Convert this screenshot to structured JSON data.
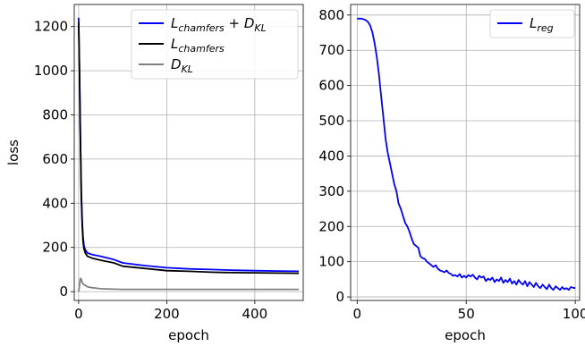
{
  "chart_data": [
    {
      "type": "line",
      "title": "",
      "xlabel": "epoch",
      "ylabel": "loss",
      "xlim": [
        -10,
        510
      ],
      "ylim": [
        -40,
        1300
      ],
      "xticks": [
        0,
        200,
        400
      ],
      "yticks": [
        0,
        200,
        400,
        600,
        800,
        1000,
        1200
      ],
      "grid": true,
      "legend_position": "top-right",
      "legend": [
        {
          "series": "sum",
          "main": "L",
          "sub": "chamfers",
          "main2": " + D",
          "sub2": "KL"
        },
        {
          "series": "chamfers",
          "main": "L",
          "sub": "chamfers",
          "main2": "",
          "sub2": ""
        },
        {
          "series": "kl",
          "main": "D",
          "sub": "KL",
          "main2": "",
          "sub2": ""
        }
      ],
      "series": [
        {
          "key": "sum",
          "color": "#0000ff",
          "x": [
            0,
            2,
            4,
            6,
            8,
            10,
            12,
            15,
            20,
            30,
            50,
            80,
            100,
            150,
            200,
            250,
            300,
            350,
            400,
            450,
            500
          ],
          "y": [
            1240,
            1000,
            700,
            450,
            320,
            250,
            210,
            190,
            175,
            168,
            160,
            145,
            130,
            118,
            108,
            103,
            100,
            97,
            95,
            93,
            92
          ]
        },
        {
          "key": "chamfers",
          "color": "#000000",
          "x": [
            0,
            2,
            4,
            6,
            8,
            10,
            12,
            15,
            20,
            30,
            50,
            80,
            100,
            150,
            200,
            250,
            300,
            350,
            400,
            450,
            500
          ],
          "y": [
            1220,
            980,
            680,
            430,
            300,
            230,
            195,
            175,
            160,
            152,
            142,
            130,
            115,
            105,
            95,
            92,
            88,
            86,
            85,
            84,
            83
          ]
        },
        {
          "key": "kl",
          "color": "#808080",
          "x": [
            0,
            2,
            4,
            6,
            8,
            10,
            15,
            20,
            30,
            50,
            80,
            100,
            150,
            200,
            300,
            400,
            500
          ],
          "y": [
            0,
            30,
            60,
            55,
            42,
            35,
            28,
            22,
            18,
            13,
            11,
            10,
            10,
            10,
            10,
            10,
            10
          ]
        }
      ]
    },
    {
      "type": "line",
      "title": "",
      "xlabel": "epoch",
      "ylabel": "",
      "xlim": [
        -3,
        102
      ],
      "ylim": [
        -10,
        830
      ],
      "xticks": [
        0,
        50,
        100
      ],
      "yticks": [
        0,
        100,
        200,
        300,
        400,
        500,
        600,
        700,
        800
      ],
      "grid": true,
      "legend_position": "top-right",
      "legend": [
        {
          "series": "reg",
          "main": "L",
          "sub": "reg",
          "main2": "",
          "sub2": ""
        }
      ],
      "series": [
        {
          "key": "reg",
          "color": "#0000ff",
          "x": [
            0,
            2,
            3,
            4,
            5,
            6,
            7,
            8,
            9,
            10,
            11,
            12,
            13,
            14,
            15,
            16,
            17,
            18,
            19,
            20,
            21,
            22,
            23,
            24,
            25,
            26,
            27,
            28,
            29,
            30,
            31,
            32,
            33,
            34,
            35,
            36,
            37,
            38,
            39,
            40,
            41,
            42,
            43,
            44,
            45,
            46,
            47,
            48,
            49,
            50,
            51,
            52,
            53,
            54,
            55,
            56,
            57,
            58,
            59,
            60,
            61,
            62,
            63,
            64,
            65,
            66,
            67,
            68,
            69,
            70,
            71,
            72,
            73,
            74,
            75,
            76,
            77,
            78,
            79,
            80,
            81,
            82,
            83,
            84,
            85,
            86,
            87,
            88,
            89,
            90,
            91,
            92,
            93,
            94,
            95,
            96,
            97,
            98,
            99,
            100
          ],
          "y": [
            790,
            790,
            788,
            785,
            780,
            770,
            750,
            720,
            680,
            630,
            570,
            510,
            450,
            410,
            380,
            350,
            320,
            300,
            265,
            250,
            230,
            210,
            200,
            185,
            165,
            150,
            145,
            140,
            115,
            110,
            108,
            100,
            95,
            90,
            85,
            90,
            80,
            75,
            73,
            70,
            75,
            68,
            65,
            60,
            62,
            58,
            65,
            55,
            60,
            55,
            62,
            58,
            63,
            55,
            50,
            60,
            55,
            58,
            45,
            52,
            48,
            55,
            42,
            50,
            45,
            55,
            40,
            48,
            42,
            52,
            38,
            45,
            35,
            48,
            40,
            35,
            45,
            30,
            42,
            35,
            28,
            40,
            30,
            25,
            35,
            28,
            22,
            35,
            25,
            20,
            30,
            25,
            20,
            28,
            22,
            25,
            20,
            28,
            26,
            25
          ]
        }
      ]
    }
  ]
}
